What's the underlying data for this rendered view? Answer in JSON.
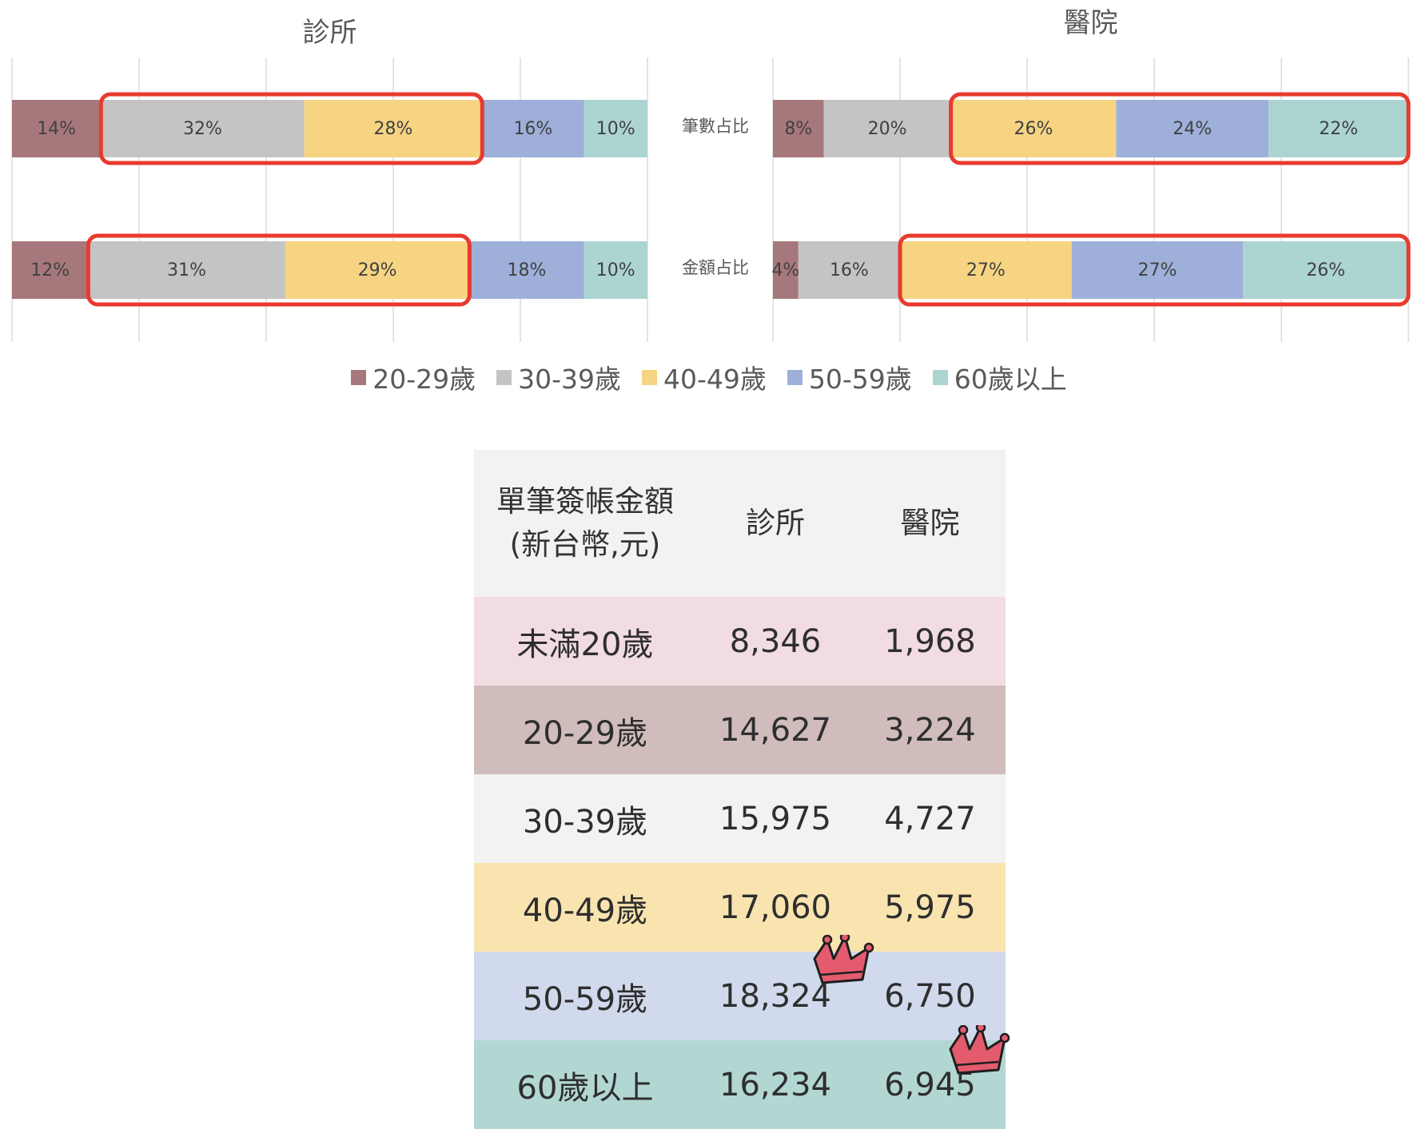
{
  "chart_data": {
    "type": "bar",
    "stacked": "percent",
    "orientation": "horizontal",
    "categories": [
      "筆數占比",
      "金額占比"
    ],
    "legend": {
      "placement": "bottom"
    },
    "grid": true,
    "panels": [
      {
        "title": "診所",
        "series": [
          {
            "name": "20-29歲",
            "values": [
              14,
              12
            ],
            "labels": [
              "14%",
              "12%"
            ]
          },
          {
            "name": "30-39歲",
            "values": [
              32,
              31
            ],
            "labels": [
              "32%",
              "31%"
            ]
          },
          {
            "name": "40-49歲",
            "values": [
              28,
              29
            ],
            "labels": [
              "28%",
              "29%"
            ]
          },
          {
            "name": "50-59歲",
            "values": [
              16,
              18
            ],
            "labels": [
              "16%",
              "18%"
            ]
          },
          {
            "name": "60歲以上",
            "values": [
              10,
              10
            ],
            "labels": [
              "10%",
              "10%"
            ]
          }
        ],
        "highlighted_series": [
          [
            "30-39歲",
            "40-49歲"
          ],
          [
            "30-39歲",
            "40-49歲"
          ]
        ]
      },
      {
        "title": "醫院",
        "series": [
          {
            "name": "20-29歲",
            "values": [
              8,
              4
            ],
            "labels": [
              "8%",
              "4%"
            ]
          },
          {
            "name": "30-39歲",
            "values": [
              20,
              16
            ],
            "labels": [
              "20%",
              "16%"
            ]
          },
          {
            "name": "40-49歲",
            "values": [
              26,
              27
            ],
            "labels": [
              "26%",
              "27%"
            ]
          },
          {
            "name": "50-59歲",
            "values": [
              24,
              27
            ],
            "labels": [
              "24%",
              "27%"
            ]
          },
          {
            "name": "60歲以上",
            "values": [
              22,
              26
            ],
            "labels": [
              "22%",
              "26%"
            ]
          }
        ],
        "highlighted_series": [
          [
            "40-49歲",
            "50-59歲",
            "60歲以上"
          ],
          [
            "40-49歲",
            "50-59歲",
            "60歲以上"
          ]
        ]
      }
    ],
    "colors": {
      "20-29歲": "#a7787b",
      "30-39歲": "#c4c4c4",
      "40-49歲": "#f6d482",
      "50-59歲": "#9eb0da",
      "60歲以上": "#acd5d2"
    },
    "highlight_color": "#e83a2e"
  },
  "legend_items": [
    {
      "label": "20-29歲",
      "color": "#a7787b"
    },
    {
      "label": "30-39歲",
      "color": "#c4c4c4"
    },
    {
      "label": "40-49歲",
      "color": "#f6d482"
    },
    {
      "label": "50-59歲",
      "color": "#9eb0da"
    },
    {
      "label": "60歲以上",
      "color": "#acd5d2"
    }
  ],
  "table": {
    "header": {
      "col1_line1": "單筆簽帳金額",
      "col1_line2": "(新台幣,元)",
      "col2": "診所",
      "col3": "醫院"
    },
    "rows": [
      {
        "age": "未滿20歲",
        "clinic": "8,346",
        "hospital": "1,968",
        "bg": "#f1dce1"
      },
      {
        "age": "20-29歲",
        "clinic": "14,627",
        "hospital": "3,224",
        "bg": "#d1bcbc"
      },
      {
        "age": "30-39歲",
        "clinic": "15,975",
        "hospital": "4,727",
        "bg": "#f2f2f2"
      },
      {
        "age": "40-49歲",
        "clinic": "17,060",
        "hospital": "5,975",
        "bg": "#f9e4b0"
      },
      {
        "age": "50-59歲",
        "clinic": "18,324",
        "hospital": "6,750",
        "bg": "#d1d9ec"
      },
      {
        "age": "60歲以上",
        "clinic": "16,234",
        "hospital": "6,945",
        "bg": "#b2d7d3"
      }
    ],
    "header_bg": "#f2f2f2",
    "crowns": [
      "18,324",
      "6,945"
    ],
    "crown_icon": "crown-icon",
    "crown_color": "#e45b6e"
  }
}
